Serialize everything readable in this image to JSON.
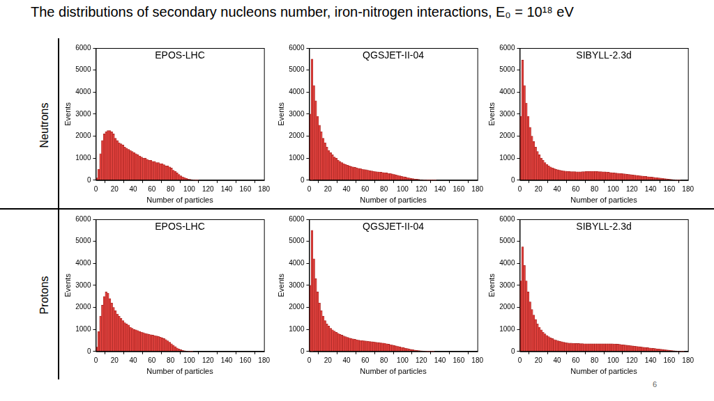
{
  "title": "The distributions of secondary nucleons number, iron-nitrogen interactions, E₀ = 10¹⁸ eV",
  "row_labels": [
    "Neutrons",
    "Protons"
  ],
  "page_number": "6",
  "chart_data": [
    {
      "type": "histogram",
      "title": "EPOS-LHC",
      "x_label": "Number of particles",
      "y_label": "Events",
      "color": "#e0403c",
      "grid": false,
      "legend": false,
      "xlim": [
        0,
        180
      ],
      "ylim": [
        0,
        6000
      ],
      "xticks": [
        0,
        20,
        40,
        60,
        80,
        100,
        120,
        140,
        160,
        180
      ],
      "yticks": [
        0,
        1000,
        2000,
        3000,
        4000,
        5000,
        6000
      ],
      "bins": [
        0,
        2,
        4,
        6,
        8,
        10,
        12,
        14,
        16,
        18,
        20,
        22,
        24,
        26,
        28,
        30,
        32,
        34,
        36,
        38,
        40,
        42,
        44,
        46,
        48,
        50,
        52,
        54,
        56,
        58,
        60,
        62,
        64,
        66,
        68,
        70,
        72,
        74,
        76,
        78,
        80,
        82,
        84,
        86,
        88,
        90,
        92,
        94,
        96,
        98,
        100,
        102,
        104,
        106,
        108,
        110
      ],
      "values": [
        100,
        500,
        1200,
        1800,
        2100,
        2200,
        2250,
        2250,
        2200,
        2100,
        1900,
        1800,
        1700,
        1650,
        1600,
        1500,
        1450,
        1400,
        1350,
        1300,
        1250,
        1200,
        1150,
        1100,
        1050,
        1000,
        1000,
        950,
        900,
        900,
        850,
        850,
        800,
        800,
        750,
        750,
        700,
        650,
        650,
        600,
        550,
        450,
        400,
        330,
        260,
        200,
        150,
        110,
        80,
        50,
        35,
        20,
        10,
        5,
        2
      ]
    },
    {
      "type": "histogram",
      "title": "QGSJET-II-04",
      "x_label": "Number of particles",
      "y_label": "Events",
      "color": "#e0403c",
      "grid": false,
      "legend": false,
      "xlim": [
        0,
        180
      ],
      "ylim": [
        0,
        6000
      ],
      "xticks": [
        0,
        20,
        40,
        60,
        80,
        100,
        120,
        140,
        160,
        180
      ],
      "yticks": [
        0,
        1000,
        2000,
        3000,
        4000,
        5000,
        6000
      ],
      "bins": [
        0,
        2,
        4,
        6,
        8,
        10,
        12,
        14,
        16,
        18,
        20,
        22,
        24,
        26,
        28,
        30,
        32,
        34,
        36,
        38,
        40,
        42,
        44,
        46,
        48,
        50,
        52,
        54,
        56,
        58,
        60,
        62,
        64,
        66,
        68,
        70,
        72,
        74,
        76,
        78,
        80,
        82,
        84,
        86,
        88,
        90,
        92,
        94,
        96,
        98,
        100,
        102,
        104,
        106,
        108,
        110,
        112,
        114,
        116,
        118,
        120,
        122,
        124,
        126,
        128,
        130,
        132,
        134,
        136
      ],
      "values": [
        3000,
        5500,
        4300,
        3600,
        2900,
        2500,
        2200,
        1900,
        1700,
        1500,
        1350,
        1250,
        1150,
        1050,
        1000,
        900,
        850,
        800,
        750,
        720,
        680,
        650,
        620,
        600,
        580,
        560,
        540,
        520,
        500,
        480,
        470,
        450,
        430,
        420,
        400,
        390,
        380,
        370,
        360,
        350,
        340,
        330,
        310,
        300,
        280,
        260,
        240,
        220,
        200,
        180,
        160,
        140,
        120,
        100,
        85,
        70,
        55,
        45,
        35,
        25,
        20,
        15,
        10,
        7,
        5,
        3,
        2,
        1
      ]
    },
    {
      "type": "histogram",
      "title": "SIBYLL-2.3d",
      "x_label": "Number of particles",
      "y_label": "Events",
      "color": "#e0403c",
      "grid": false,
      "legend": false,
      "xlim": [
        0,
        180
      ],
      "ylim": [
        0,
        6000
      ],
      "xticks": [
        0,
        20,
        40,
        60,
        80,
        100,
        120,
        140,
        160,
        180
      ],
      "yticks": [
        0,
        1000,
        2000,
        3000,
        4000,
        5000,
        6000
      ],
      "bins": [
        0,
        2,
        4,
        6,
        8,
        10,
        12,
        14,
        16,
        18,
        20,
        22,
        24,
        26,
        28,
        30,
        32,
        34,
        36,
        38,
        40,
        42,
        44,
        46,
        48,
        50,
        52,
        54,
        56,
        58,
        60,
        62,
        64,
        66,
        68,
        70,
        72,
        74,
        76,
        78,
        80,
        82,
        84,
        86,
        88,
        90,
        92,
        94,
        96,
        98,
        100,
        102,
        104,
        106,
        108,
        110,
        112,
        114,
        116,
        118,
        120,
        122,
        124,
        126,
        128,
        130,
        132,
        134,
        136,
        138,
        140,
        142,
        144,
        146,
        148,
        150,
        152,
        154,
        156,
        158,
        160,
        162,
        164,
        166,
        168,
        170,
        172
      ],
      "values": [
        2900,
        5450,
        4300,
        3500,
        2900,
        2400,
        2000,
        1750,
        1500,
        1300,
        1150,
        1000,
        900,
        800,
        720,
        650,
        600,
        560,
        520,
        490,
        470,
        450,
        430,
        420,
        410,
        400,
        395,
        390,
        390,
        385,
        380,
        380,
        380,
        385,
        390,
        395,
        400,
        400,
        405,
        405,
        400,
        395,
        390,
        385,
        380,
        375,
        370,
        360,
        350,
        340,
        330,
        320,
        315,
        310,
        300,
        290,
        280,
        270,
        260,
        250,
        240,
        230,
        220,
        210,
        200,
        190,
        180,
        170,
        160,
        150,
        140,
        130,
        120,
        110,
        100,
        90,
        80,
        70,
        60,
        50,
        40,
        30,
        20,
        12,
        6,
        3
      ]
    },
    {
      "type": "histogram",
      "title": "EPOS-LHC",
      "x_label": "Number of particles",
      "y_label": "Events",
      "color": "#e0403c",
      "grid": false,
      "legend": false,
      "xlim": [
        0,
        180
      ],
      "ylim": [
        0,
        6000
      ],
      "xticks": [
        0,
        20,
        40,
        60,
        80,
        100,
        120,
        140,
        160,
        180
      ],
      "yticks": [
        0,
        1000,
        2000,
        3000,
        4000,
        5000,
        6000
      ],
      "bins": [
        0,
        2,
        4,
        6,
        8,
        10,
        12,
        14,
        16,
        18,
        20,
        22,
        24,
        26,
        28,
        30,
        32,
        34,
        36,
        38,
        40,
        42,
        44,
        46,
        48,
        50,
        52,
        54,
        56,
        58,
        60,
        62,
        64,
        66,
        68,
        70,
        72,
        74,
        76,
        78,
        80,
        82,
        84,
        86,
        88,
        90,
        92,
        94,
        96,
        98,
        100,
        102,
        104
      ],
      "values": [
        200,
        900,
        1600,
        2100,
        2500,
        2700,
        2650,
        2400,
        2200,
        2000,
        1850,
        1700,
        1600,
        1500,
        1400,
        1300,
        1250,
        1200,
        1100,
        1050,
        1000,
        980,
        950,
        900,
        880,
        850,
        820,
        800,
        780,
        760,
        740,
        720,
        700,
        680,
        650,
        620,
        580,
        540,
        480,
        420,
        350,
        280,
        220,
        160,
        110,
        75,
        50,
        30,
        18,
        10,
        5,
        2
      ]
    },
    {
      "type": "histogram",
      "title": "QGSJET-II-04",
      "x_label": "Number of particles",
      "y_label": "Events",
      "color": "#e0403c",
      "grid": false,
      "legend": false,
      "xlim": [
        0,
        180
      ],
      "ylim": [
        0,
        6000
      ],
      "xticks": [
        0,
        20,
        40,
        60,
        80,
        100,
        120,
        140,
        160,
        180
      ],
      "yticks": [
        0,
        1000,
        2000,
        3000,
        4000,
        5000,
        6000
      ],
      "bins": [
        0,
        2,
        4,
        6,
        8,
        10,
        12,
        14,
        16,
        18,
        20,
        22,
        24,
        26,
        28,
        30,
        32,
        34,
        36,
        38,
        40,
        42,
        44,
        46,
        48,
        50,
        52,
        54,
        56,
        58,
        60,
        62,
        64,
        66,
        68,
        70,
        72,
        74,
        76,
        78,
        80,
        82,
        84,
        86,
        88,
        90,
        92,
        94,
        96,
        98,
        100,
        102,
        104,
        106,
        108,
        110,
        112,
        114,
        116,
        118,
        120,
        122,
        124,
        126,
        128,
        130,
        132,
        134
      ],
      "values": [
        3000,
        5500,
        4200,
        3300,
        2700,
        2200,
        1850,
        1600,
        1400,
        1250,
        1150,
        1050,
        980,
        920,
        870,
        820,
        780,
        740,
        700,
        670,
        640,
        610,
        590,
        570,
        550,
        530,
        510,
        500,
        490,
        480,
        470,
        460,
        450,
        440,
        430,
        420,
        410,
        400,
        390,
        380,
        370,
        350,
        330,
        310,
        290,
        270,
        250,
        230,
        210,
        190,
        170,
        150,
        130,
        110,
        90,
        75,
        60,
        48,
        38,
        30,
        22,
        16,
        11,
        8,
        5,
        3,
        2
      ]
    },
    {
      "type": "histogram",
      "title": "SIBYLL-2.3d",
      "x_label": "Number of particles",
      "y_label": "Events",
      "color": "#e0403c",
      "grid": false,
      "legend": false,
      "xlim": [
        0,
        180
      ],
      "ylim": [
        0,
        6000
      ],
      "xticks": [
        0,
        20,
        40,
        60,
        80,
        100,
        120,
        140,
        160,
        180
      ],
      "yticks": [
        0,
        1000,
        2000,
        3000,
        4000,
        5000,
        6000
      ],
      "bins": [
        0,
        2,
        4,
        6,
        8,
        10,
        12,
        14,
        16,
        18,
        20,
        22,
        24,
        26,
        28,
        30,
        32,
        34,
        36,
        38,
        40,
        42,
        44,
        46,
        48,
        50,
        52,
        54,
        56,
        58,
        60,
        62,
        64,
        66,
        68,
        70,
        72,
        74,
        76,
        78,
        80,
        82,
        84,
        86,
        88,
        90,
        92,
        94,
        96,
        98,
        100,
        102,
        104,
        106,
        108,
        110,
        112,
        114,
        116,
        118,
        120,
        122,
        124,
        126,
        128,
        130,
        132,
        134,
        136,
        138,
        140,
        142,
        144,
        146,
        148,
        150,
        152,
        154,
        156,
        158,
        160,
        162,
        164,
        166,
        168,
        170,
        172,
        174,
        176
      ],
      "values": [
        3200,
        4750,
        3900,
        3200,
        2700,
        2250,
        1900,
        1650,
        1450,
        1250,
        1100,
        980,
        880,
        800,
        730,
        670,
        620,
        580,
        540,
        510,
        480,
        460,
        440,
        420,
        400,
        390,
        380,
        375,
        370,
        365,
        360,
        360,
        355,
        355,
        350,
        350,
        350,
        345,
        345,
        345,
        345,
        345,
        345,
        345,
        345,
        345,
        345,
        345,
        345,
        345,
        340,
        335,
        330,
        320,
        310,
        300,
        290,
        280,
        270,
        260,
        250,
        240,
        230,
        220,
        210,
        200,
        190,
        180,
        170,
        160,
        150,
        140,
        130,
        120,
        110,
        100,
        90,
        80,
        70,
        60,
        50,
        40,
        30,
        22,
        15,
        10,
        5,
        2
      ]
    }
  ]
}
